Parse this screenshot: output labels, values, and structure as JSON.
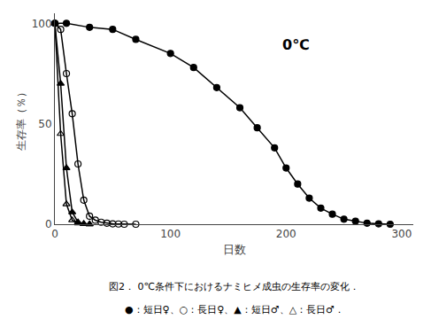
{
  "chart_data": {
    "type": "line",
    "annotations": [
      "0℃"
    ],
    "caption": [
      "図2． 0℃条件下におけるナミヒメ成虫の生存率の変化．",
      "●：短日♀、○：長日♀、▲：短日♂、△：長日♂．"
    ],
    "xlabel": "日数",
    "ylabel": "生存率（％）",
    "xlim": [
      0,
      310
    ],
    "ylim": [
      0,
      105
    ],
    "xticks": [
      0,
      100,
      200,
      300
    ],
    "yticks": [
      0,
      50,
      100
    ],
    "grid": false,
    "series": [
      {
        "color": "black",
        "marker": "circle",
        "x": [
          0,
          10,
          30,
          50,
          70,
          100,
          120,
          140,
          160,
          175,
          190,
          200,
          210,
          220,
          230,
          240,
          250,
          260,
          270,
          280,
          290
        ],
        "values": [
          100,
          100,
          98,
          97,
          92,
          85,
          78,
          68,
          58,
          48,
          38,
          28,
          20,
          13,
          8,
          5,
          2.5,
          1.5,
          0.5,
          0.2,
          0
        ]
      },
      {
        "color": "black",
        "marker": "circle-open",
        "x": [
          0,
          5,
          10,
          15,
          20,
          25,
          30,
          35,
          40,
          45,
          50,
          55,
          60,
          70
        ],
        "values": [
          100,
          97,
          75,
          55,
          30,
          12,
          4,
          2,
          1,
          0.5,
          0.2,
          0.1,
          0,
          0
        ]
      },
      {
        "color": "black",
        "marker": "triangle-up",
        "x": [
          0,
          5,
          10,
          15,
          20,
          25,
          30
        ],
        "values": [
          100,
          70,
          28,
          6,
          1,
          0.2,
          0
        ]
      },
      {
        "color": "black",
        "marker": "triangle-up-open",
        "x": [
          0,
          5,
          10,
          15,
          20,
          25,
          30
        ],
        "values": [
          100,
          45,
          10,
          2,
          0.5,
          0.1,
          0
        ]
      }
    ]
  }
}
